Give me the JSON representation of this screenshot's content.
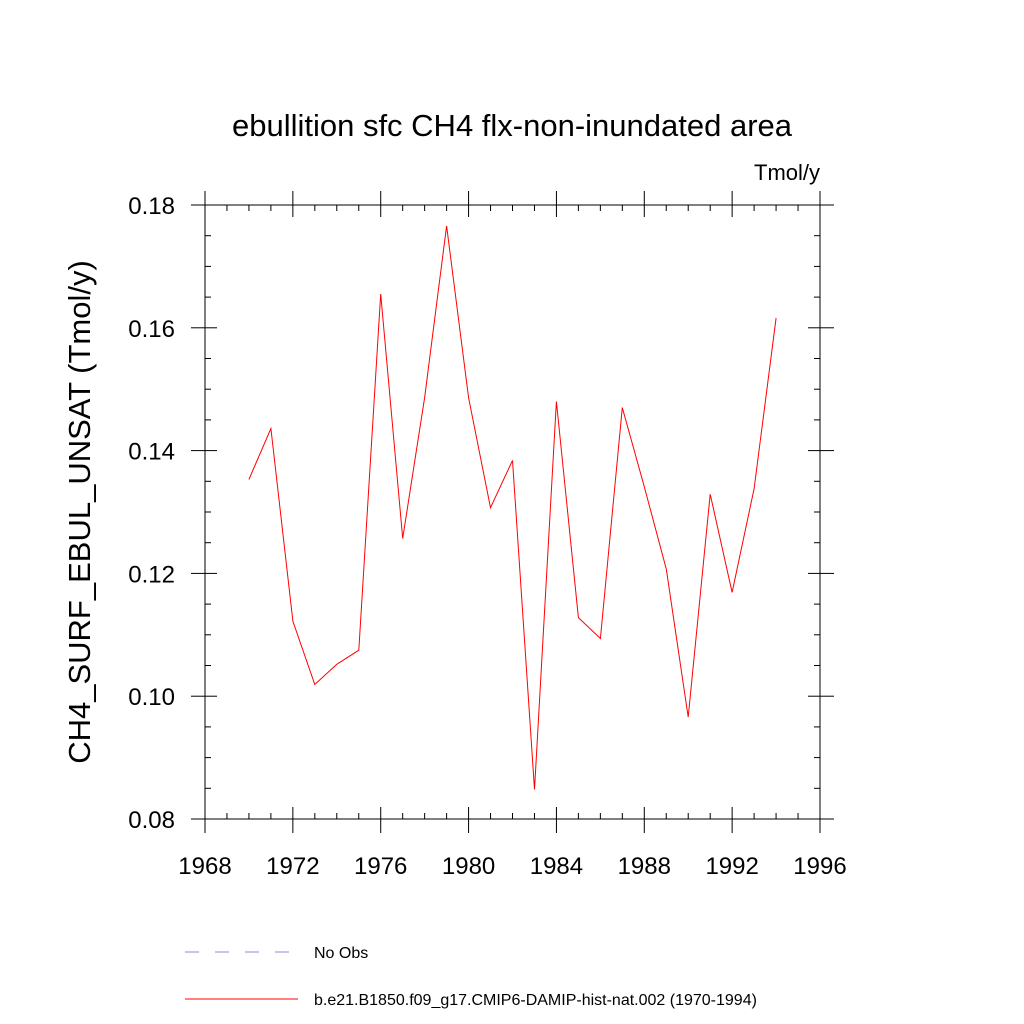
{
  "chart_data": {
    "type": "line",
    "title": "ebullition sfc CH4 flx-non-inundated area",
    "units": "Tmol/y",
    "xlabel": "",
    "ylabel": "CH4_SURF_EBUL_UNSAT  (Tmol/y)",
    "xlim": [
      1968,
      1996
    ],
    "ylim": [
      0.08,
      0.18
    ],
    "x_ticks": [
      1968,
      1972,
      1976,
      1980,
      1984,
      1988,
      1992,
      1996
    ],
    "y_ticks": [
      0.08,
      0.1,
      0.12,
      0.14,
      0.16,
      0.18
    ],
    "x_tick_labels": [
      "1968",
      "1972",
      "1976",
      "1980",
      "1984",
      "1988",
      "1992",
      "1996"
    ],
    "y_tick_labels": [
      "0.08",
      "0.10",
      "0.12",
      "0.14",
      "0.16",
      "0.18"
    ],
    "x": [
      1970,
      1971,
      1972,
      1973,
      1974,
      1975,
      1976,
      1977,
      1978,
      1979,
      1980,
      1981,
      1982,
      1983,
      1984,
      1985,
      1986,
      1987,
      1988,
      1989,
      1990,
      1991,
      1992,
      1993,
      1994
    ],
    "series": [
      {
        "name": "b.e21.B1850.f09_g17.CMIP6-DAMIP-hist-nat.002 (1970-1994)",
        "color": "#ff0000",
        "style": "solid",
        "values": [
          0.1353,
          0.1436,
          0.1122,
          0.1019,
          0.1052,
          0.1075,
          0.1655,
          0.1257,
          0.1486,
          0.1766,
          0.1486,
          0.1307,
          0.1384,
          0.0848,
          0.148,
          0.1128,
          0.1094,
          0.147,
          0.1341,
          0.1207,
          0.0966,
          0.1329,
          0.1169,
          0.1338,
          0.1616
        ]
      }
    ],
    "legend": [
      {
        "label": "No Obs",
        "color": "#8a8ad8",
        "style": "dashed"
      },
      {
        "label": "b.e21.B1850.f09_g17.CMIP6-DAMIP-hist-nat.002 (1970-1994)",
        "color": "#ff0000",
        "style": "solid"
      }
    ],
    "legend_position": "bottom",
    "grid": false
  }
}
